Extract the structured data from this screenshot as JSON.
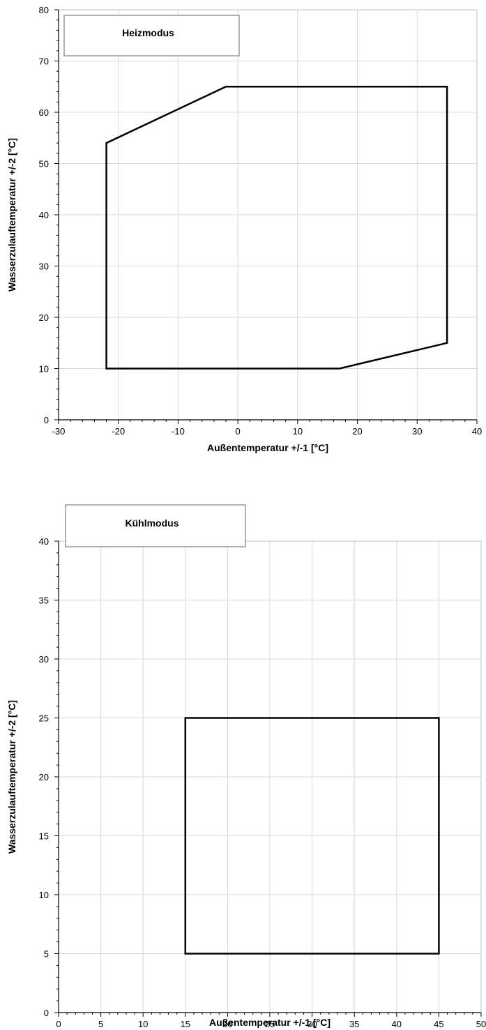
{
  "chart_data": [
    {
      "type": "line",
      "legend_box_text": "Heizmodus",
      "legend_position": "top-left",
      "xlabel": "Außentemperatur +/-1 [°C]",
      "ylabel": "Wasserzulauftemperatur +/-2 [°C]",
      "xlim": [
        -30,
        40
      ],
      "ylim": [
        0,
        80
      ],
      "x_ticks": [
        -30,
        -20,
        -10,
        0,
        10,
        20,
        30,
        40
      ],
      "y_ticks": [
        0,
        10,
        20,
        30,
        40,
        50,
        60,
        70,
        80
      ],
      "x_tick_labels": [
        "-30",
        "-20",
        "-10",
        "0",
        "10",
        "20",
        "30",
        "40"
      ],
      "y_tick_labels": [
        "0",
        "10",
        "20",
        "30",
        "40",
        "50",
        "60",
        "70",
        "80"
      ],
      "grid": true,
      "series": [
        {
          "closed": true,
          "color": "#000000",
          "points": [
            [
              -22,
              10
            ],
            [
              -22,
              54
            ],
            [
              -2,
              65
            ],
            [
              35,
              65
            ],
            [
              35,
              15
            ],
            [
              17,
              10
            ]
          ]
        }
      ]
    },
    {
      "type": "line",
      "legend_box_text": "Kühlmodus",
      "legend_position": "top-left",
      "xlabel": "Außentemperatur +/-1 [°C]",
      "ylabel": "Wasserzulauftemperatur +/-2 [°C]",
      "xlim": [
        0,
        50
      ],
      "ylim": [
        0,
        40
      ],
      "x_ticks": [
        0,
        5,
        10,
        15,
        20,
        25,
        30,
        35,
        40,
        45,
        50
      ],
      "y_ticks": [
        0,
        5,
        10,
        15,
        20,
        25,
        30,
        35,
        40
      ],
      "x_tick_labels": [
        "0",
        "5",
        "10",
        "15",
        "20",
        "25",
        "30",
        "35",
        "40",
        "45",
        "50"
      ],
      "y_tick_labels": [
        "0",
        "5",
        "10",
        "15",
        "20",
        "25",
        "30",
        "35",
        "40"
      ],
      "grid": true,
      "series": [
        {
          "closed": true,
          "color": "#000000",
          "points": [
            [
              15,
              5
            ],
            [
              15,
              25
            ],
            [
              45,
              25
            ],
            [
              45,
              5
            ]
          ]
        }
      ]
    }
  ]
}
